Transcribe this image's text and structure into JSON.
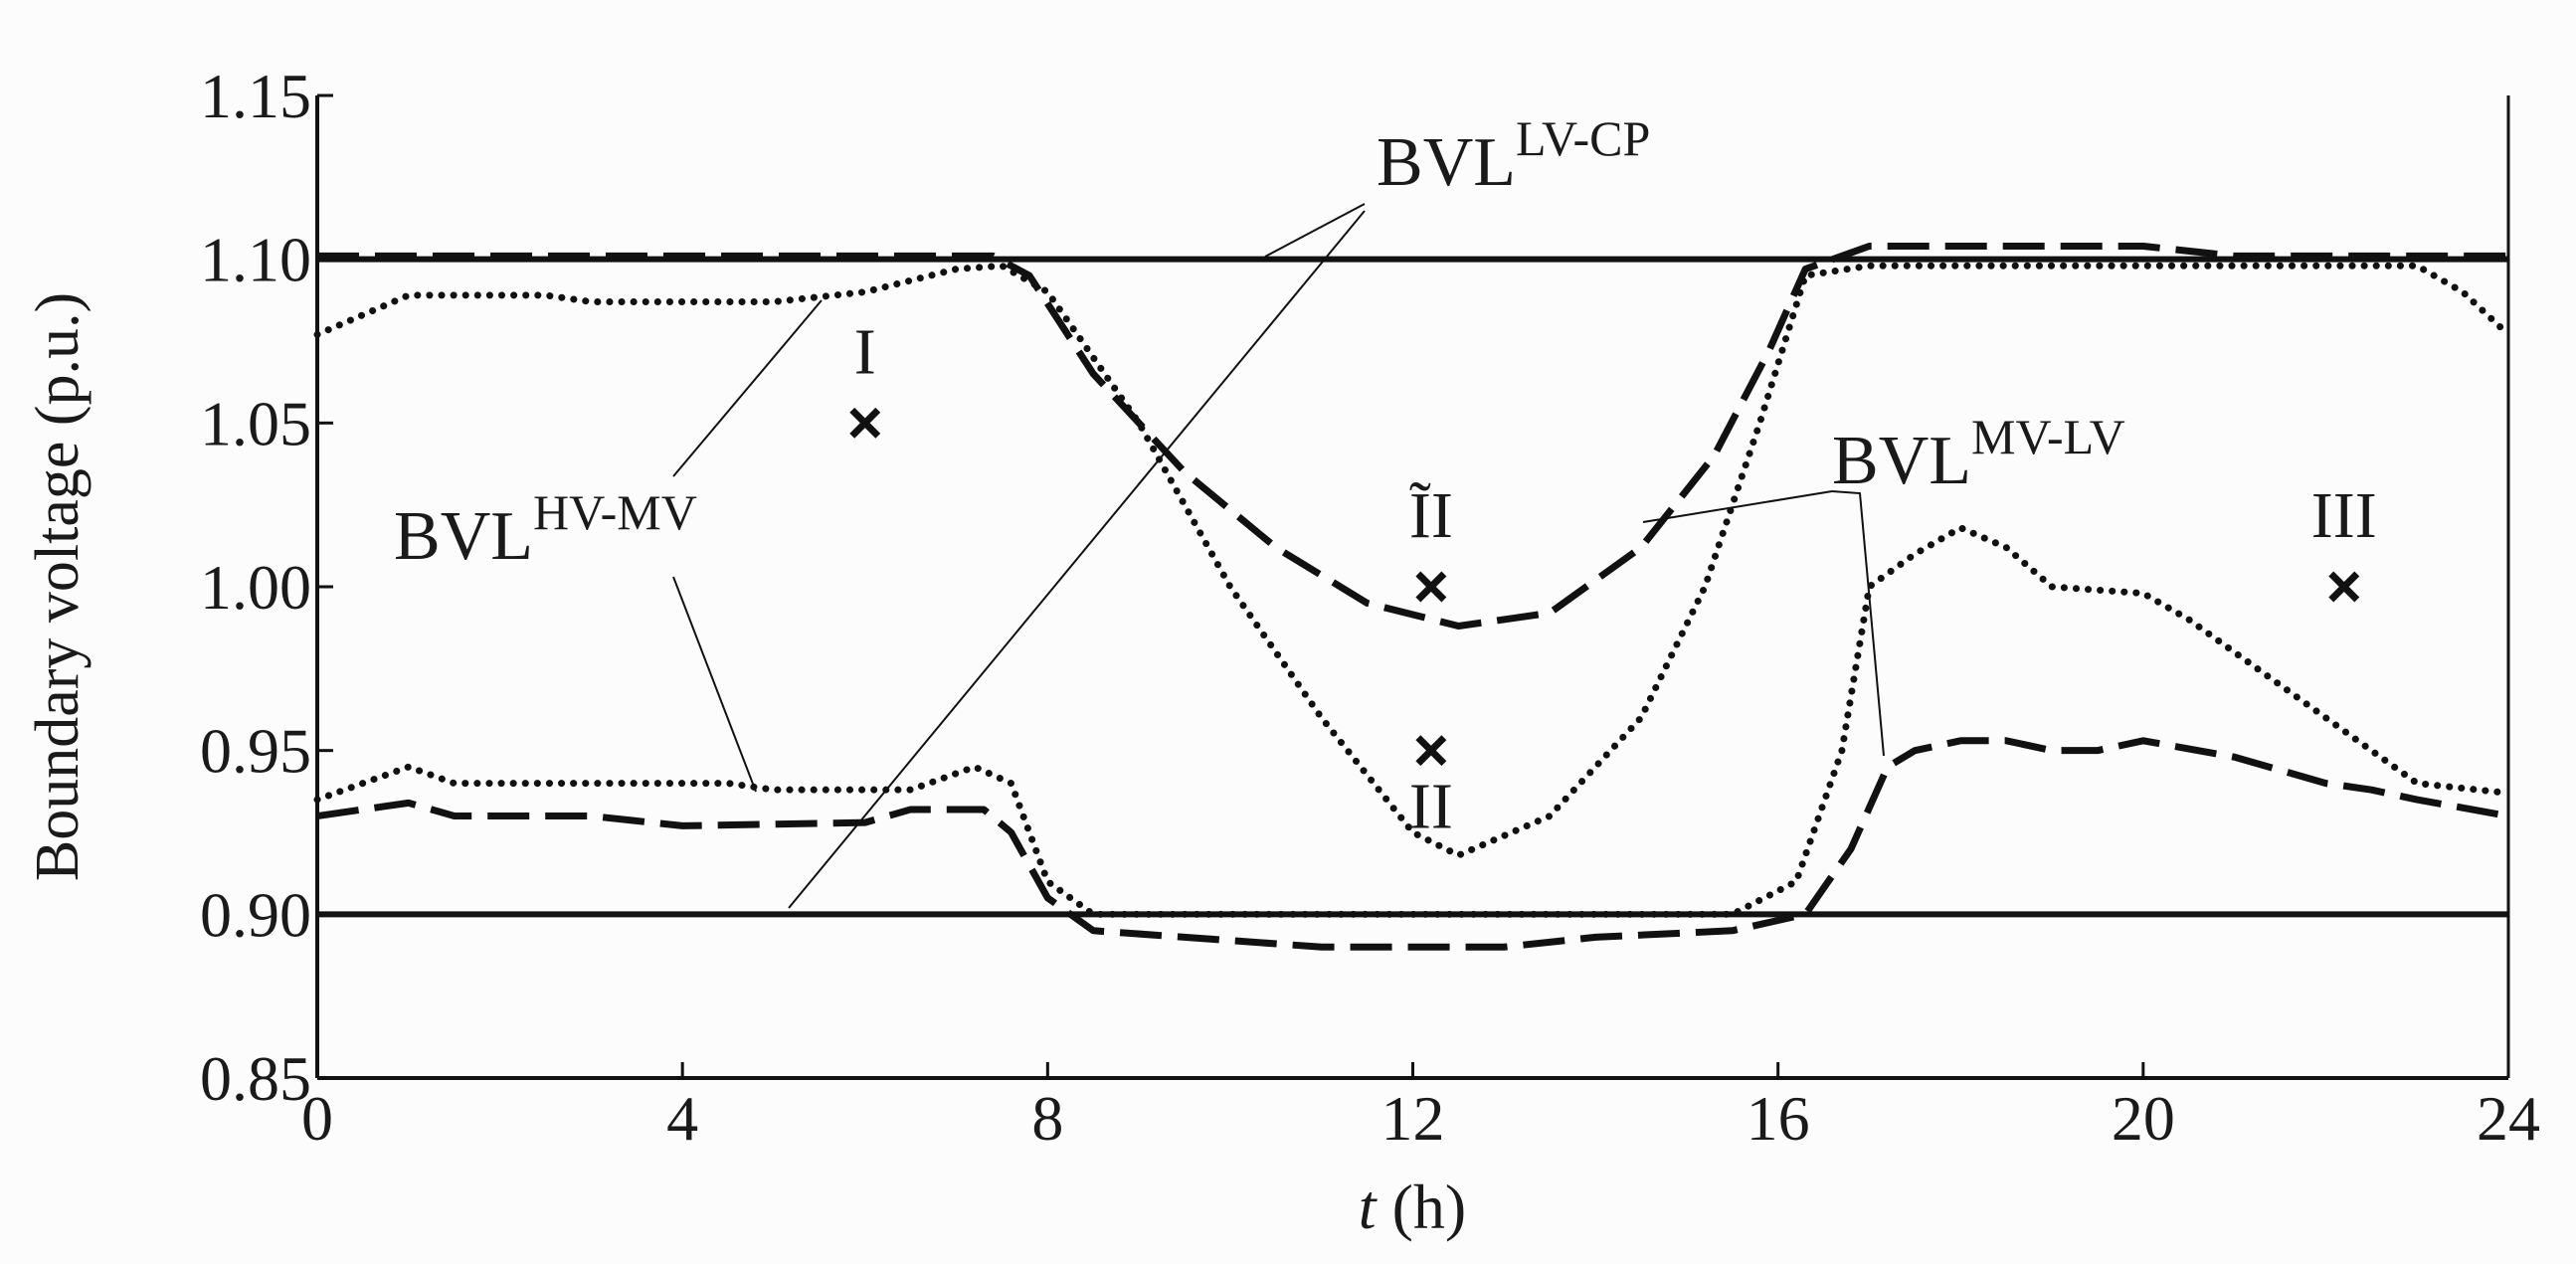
{
  "chart_data": {
    "type": "line",
    "ylabel": "Boundary voltage  (p.u.)",
    "xlabel_var": "t",
    "xlabel_unit": "(h)",
    "xlim": [
      0,
      24
    ],
    "xticks": [
      0,
      4,
      8,
      12,
      16,
      20,
      24
    ],
    "ylim": [
      0.85,
      1.15
    ],
    "yticks": [
      {
        "value": 0.85,
        "label": "0.85"
      },
      {
        "value": 0.9,
        "label": "0.90"
      },
      0.95,
      {
        "value": 1.0,
        "label": "1.00"
      },
      1.05,
      {
        "value": 1.1,
        "label": "1.10"
      },
      1.15
    ],
    "series": [
      {
        "style": "solid",
        "color": "#111111",
        "x": [
          0,
          24
        ],
        "values": [
          1.1,
          1.1
        ]
      },
      {
        "style": "solid",
        "color": "#111111",
        "x": [
          0,
          24
        ],
        "values": [
          0.9,
          0.9
        ]
      },
      {
        "style": "dashed",
        "color": "#111111",
        "x": [
          0,
          2,
          4,
          6,
          7.4,
          7.8,
          8.5,
          9.5,
          10.5,
          11.5,
          12.5,
          13.5,
          14.5,
          15.3,
          15.9,
          16.3,
          17,
          18,
          20,
          21,
          24
        ],
        "values": [
          1.101,
          1.101,
          1.101,
          1.101,
          1.101,
          1.095,
          1.065,
          1.035,
          1.012,
          0.995,
          0.988,
          0.992,
          1.012,
          1.04,
          1.072,
          1.097,
          1.104,
          1.104,
          1.104,
          1.101,
          1.101
        ]
      },
      {
        "style": "dotted",
        "color": "#111111",
        "x": [
          0,
          1,
          2.5,
          3,
          5,
          6,
          7,
          7.5,
          8,
          9,
          10,
          11,
          12,
          12.5,
          13.5,
          14.5,
          15.2,
          15.8,
          16.3,
          17,
          20,
          23,
          23.5,
          24
        ],
        "values": [
          1.077,
          1.089,
          1.089,
          1.087,
          1.087,
          1.09,
          1.097,
          1.098,
          1.09,
          1.05,
          1.0,
          0.96,
          0.925,
          0.918,
          0.93,
          0.96,
          1.0,
          1.05,
          1.095,
          1.098,
          1.098,
          1.098,
          1.09,
          1.077
        ]
      },
      {
        "style": "dotted",
        "color": "#111111",
        "x": [
          0,
          0.5,
          1,
          1.5,
          4.5,
          5,
          6.5,
          7.2,
          7.6,
          8,
          8.5,
          15.5,
          16.2,
          16.7,
          17,
          17.5,
          18,
          18.5,
          19,
          20,
          20.5,
          21,
          21.5,
          22,
          22.5,
          23,
          24
        ],
        "values": [
          0.935,
          0.94,
          0.945,
          0.94,
          0.94,
          0.938,
          0.938,
          0.945,
          0.94,
          0.91,
          0.9,
          0.9,
          0.91,
          0.95,
          1.0,
          1.01,
          1.018,
          1.012,
          1.0,
          0.998,
          0.99,
          0.98,
          0.97,
          0.96,
          0.95,
          0.94,
          0.937
        ]
      },
      {
        "style": "dashed",
        "color": "#111111",
        "x": [
          0,
          1,
          1.5,
          3,
          4,
          6,
          6.5,
          7.3,
          7.6,
          8,
          8.5,
          10,
          11,
          13,
          14,
          15.5,
          16.3,
          16.8,
          17.2,
          17.5,
          18,
          18.5,
          19,
          19.5,
          20,
          21,
          22,
          22.5,
          23,
          24
        ],
        "values": [
          0.93,
          0.934,
          0.93,
          0.93,
          0.927,
          0.928,
          0.932,
          0.932,
          0.925,
          0.905,
          0.895,
          0.892,
          0.89,
          0.89,
          0.893,
          0.895,
          0.9,
          0.92,
          0.945,
          0.95,
          0.953,
          0.953,
          0.95,
          0.95,
          0.953,
          0.948,
          0.94,
          0.938,
          0.935,
          0.93
        ]
      }
    ],
    "points": [
      {
        "label": "I",
        "x": 6,
        "y": 1.05
      },
      {
        "label": "ĨI",
        "x": 12.2,
        "y": 1.0
      },
      {
        "label": "II",
        "x": 12.2,
        "y": 0.95
      },
      {
        "label": "III",
        "x": 22.2,
        "y": 1.0
      }
    ],
    "annotations": [
      {
        "text": "BVL",
        "sup": "LV-CP"
      },
      {
        "text": "BVL",
        "sup": "HV-MV"
      },
      {
        "text": "BVL",
        "sup": "MV-LV"
      }
    ]
  }
}
